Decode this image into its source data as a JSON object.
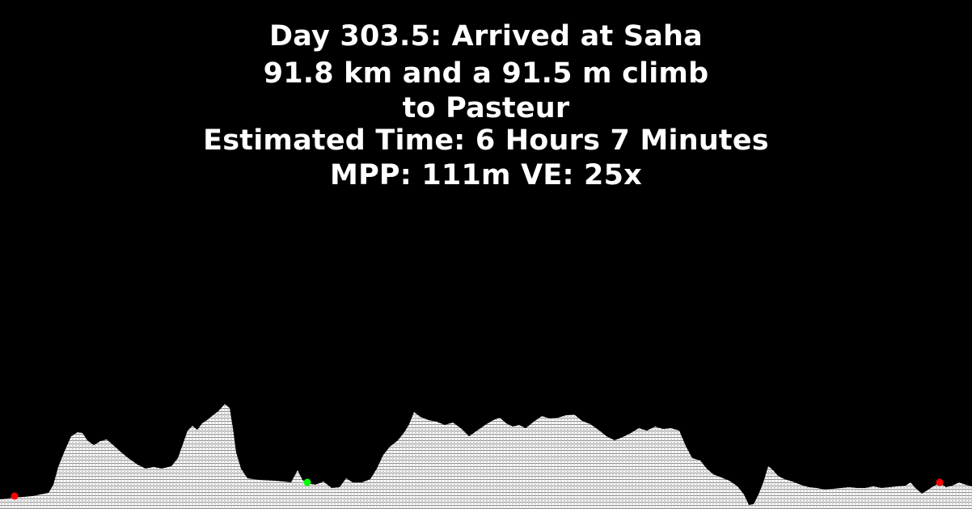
{
  "header": {
    "day_line": "Day 303.5: Arrived at Saha",
    "distance_line": "91.8 km and a 91.5 m climb",
    "destination_line": "to Pasteur",
    "time_line": "Estimated Time: 6 Hours 7 Minutes",
    "scale_line": "MPP: 111m VE: 25x"
  },
  "profile": {
    "fill_color": "#ffffff",
    "hatch_color": "#8a8a8a",
    "background_color": "#000000",
    "markers": [
      {
        "name": "start-marker",
        "color": "#ff0000"
      },
      {
        "name": "current-position-marker",
        "color": "#00ff00"
      },
      {
        "name": "end-marker",
        "color": "#ff0000"
      }
    ]
  }
}
